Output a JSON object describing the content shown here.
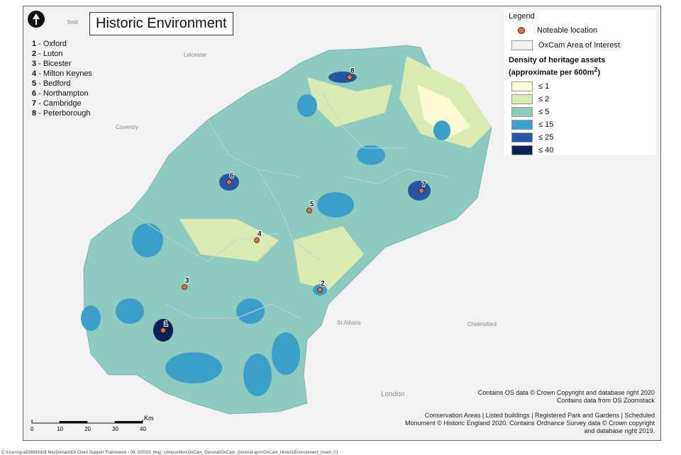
{
  "title": "Historic Environment",
  "places": [
    {
      "num": "1",
      "name": "- Oxford"
    },
    {
      "num": "2",
      "name": "- Luton"
    },
    {
      "num": "3",
      "name": "- Bicester"
    },
    {
      "num": "4",
      "name": "- Milton Keynes"
    },
    {
      "num": "5",
      "name": "- Bedford"
    },
    {
      "num": "6",
      "name": "- Northampton"
    },
    {
      "num": "7",
      "name": "- Cambridge"
    },
    {
      "num": "8",
      "name": "- Peterborough"
    }
  ],
  "basemap_labels": [
    "Leicester",
    "Coventry",
    "St Albans",
    "Chelmsford",
    "London",
    "field"
  ],
  "legend": {
    "title": "Legend",
    "notable": "Noteable location",
    "area": "OxCam Area of Interest",
    "density_title": "Density of heritage assets",
    "density_subtitle": "(approximate per 600m",
    "density_sup": "2",
    "density_close": ")",
    "classes": [
      {
        "label": "≤ 1",
        "color": "#fbfad2"
      },
      {
        "label": "≤ 2",
        "color": "#d9ebb2"
      },
      {
        "label": "≤ 5",
        "color": "#8ccbbd"
      },
      {
        "label": "≤ 15",
        "color": "#3c9fc9"
      },
      {
        "label": "≤ 25",
        "color": "#2655a3"
      },
      {
        "label": "≤ 40",
        "color": "#0b1f5a"
      }
    ],
    "marker_color": "#e86b3a"
  },
  "credits": {
    "os1": "Contains OS data © Crown Copyright and database right 2020",
    "os2": "Contains data from OS Zoomstack",
    "he1": "Conservation Areas | Listed buildings | Registered Park and Gardens | Scheduled",
    "he2": "Monument © Historic England 2020. Contains Ordnance Survey data © Crown copyright",
    "he3": "and database right 2019."
  },
  "scale": {
    "unit": "Km",
    "ticks": [
      "0",
      "10",
      "20",
      "30",
      "40"
    ]
  },
  "file_path": "C:\\Users\\gra83889\\Mott MacDonald\\EA Client Support Framework - 06. GIS\\03_Map_composition\\OxCam_General\\OxCam_General.aprx\\OxCam_HistoricEnvironment_Insert_01"
}
